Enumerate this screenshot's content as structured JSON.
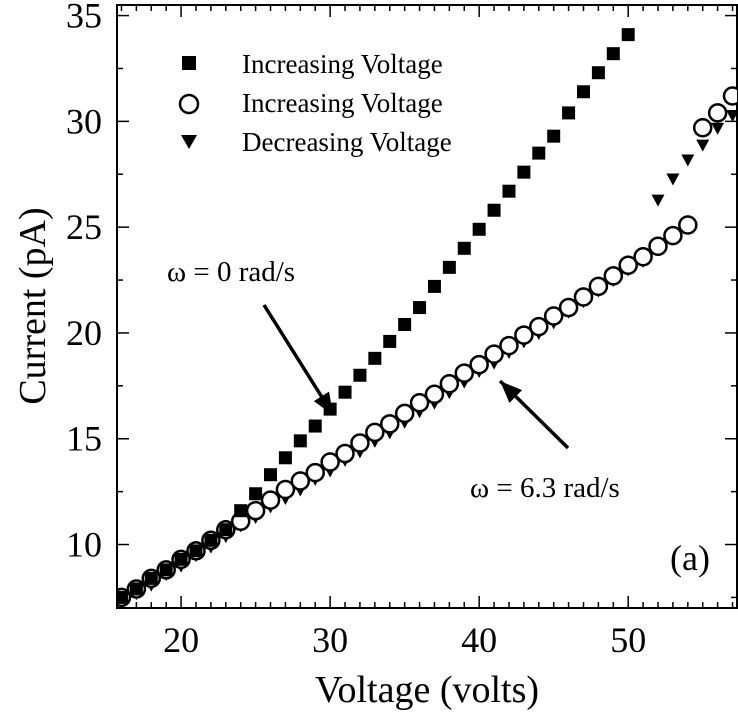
{
  "chart_data": {
    "type": "scatter",
    "title": "",
    "panel_label": "(a)",
    "xlabel": "Voltage (volts)",
    "ylabel": "Current (pA)",
    "xlim": [
      15.7,
      57.3
    ],
    "ylim": [
      7.0,
      35.5
    ],
    "xticks": [
      20,
      30,
      40,
      50
    ],
    "yticks": [
      10,
      15,
      20,
      25,
      30,
      35
    ],
    "grid": false,
    "legend_position": "top-left",
    "series": [
      {
        "name": "Increasing Voltage",
        "marker": "filled-square",
        "x": [
          16,
          17,
          18,
          19,
          20,
          21,
          22,
          23,
          24,
          25,
          26,
          27,
          28,
          29,
          30,
          31,
          32,
          33,
          34,
          35,
          36,
          37,
          38,
          39,
          40,
          41,
          42,
          43,
          44,
          45,
          46,
          47,
          48,
          49,
          50
        ],
        "y": [
          7.5,
          7.9,
          8.4,
          8.8,
          9.3,
          9.7,
          10.2,
          10.7,
          11.6,
          12.4,
          13.3,
          14.1,
          14.9,
          15.6,
          16.4,
          17.2,
          18.0,
          18.8,
          19.6,
          20.4,
          21.2,
          22.2,
          23.1,
          24.0,
          24.9,
          25.8,
          26.7,
          27.6,
          28.5,
          29.3,
          30.4,
          31.4,
          32.3,
          33.2,
          34.1
        ]
      },
      {
        "name": "Increasing Voltage",
        "marker": "open-circle",
        "x": [
          16,
          17,
          18,
          19,
          20,
          21,
          22,
          23,
          24,
          25,
          26,
          27,
          28,
          29,
          30,
          31,
          32,
          33,
          34,
          35,
          36,
          37,
          38,
          39,
          40,
          41,
          42,
          43,
          44,
          45,
          46,
          47,
          48,
          49,
          50,
          51,
          52,
          53,
          54,
          55,
          56,
          57
        ],
        "y": [
          7.5,
          7.9,
          8.4,
          8.8,
          9.3,
          9.7,
          10.2,
          10.7,
          11.1,
          11.6,
          12.1,
          12.6,
          13.0,
          13.4,
          13.9,
          14.3,
          14.8,
          15.3,
          15.7,
          16.2,
          16.7,
          17.1,
          17.6,
          18.1,
          18.5,
          19.0,
          19.4,
          19.9,
          20.3,
          20.8,
          21.2,
          21.7,
          22.2,
          22.7,
          23.2,
          23.6,
          24.1,
          24.6,
          25.1,
          29.7,
          30.4,
          31.2
        ]
      },
      {
        "name": "Decreasing Voltage",
        "marker": "filled-triangle-down",
        "x": [
          16,
          17,
          18,
          19,
          20,
          21,
          22,
          23,
          24,
          25,
          26,
          27,
          28,
          29,
          30,
          31,
          32,
          33,
          34,
          35,
          36,
          37,
          38,
          39,
          40,
          41,
          42,
          43,
          44,
          45,
          46,
          47,
          48,
          49,
          50,
          51,
          52,
          53,
          54,
          55,
          56,
          57
        ],
        "y": [
          7.3,
          7.7,
          8.1,
          8.6,
          9.0,
          9.5,
          9.9,
          10.4,
          10.9,
          11.3,
          11.8,
          12.2,
          12.6,
          13.1,
          13.5,
          14.0,
          14.4,
          14.9,
          15.3,
          15.8,
          16.3,
          16.7,
          17.2,
          17.7,
          18.2,
          18.6,
          19.1,
          19.6,
          20.0,
          20.5,
          21.0,
          21.5,
          22.0,
          22.5,
          23.0,
          23.4,
          26.3,
          27.3,
          28.2,
          28.9,
          29.7,
          30.3
        ]
      }
    ],
    "annotations": [
      {
        "text": "ω = 0 rad/s",
        "arrow_to": [
          30.0,
          16.5
        ]
      },
      {
        "text": "ω = 6.3 rad/s",
        "arrow_to": [
          41.0,
          18.2
        ]
      }
    ]
  }
}
